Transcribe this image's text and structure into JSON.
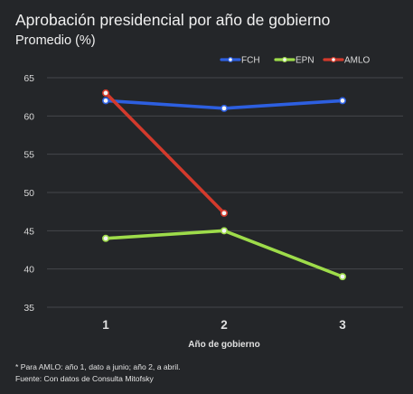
{
  "title": "Aprobación presidencial por año de gobierno",
  "subtitle": "Promedio (%)",
  "footnote": "* Para AMLO: año 1, dato a junio; año 2, a abril.",
  "source": "Fuente: Con datos de Consulta Mitofsky",
  "chart_data": {
    "type": "line",
    "title": "Aprobación presidencial por año de gobierno",
    "subtitle": "Promedio (%)",
    "xlabel": "Año de gobierno",
    "ylabel": "",
    "x": [
      1,
      2,
      3
    ],
    "x_tick_labels": [
      "1",
      "2",
      "3"
    ],
    "ylim": [
      35,
      65
    ],
    "y_ticks": [
      35,
      40,
      45,
      50,
      55,
      60,
      65
    ],
    "grid": true,
    "legend_position": "top-right",
    "series": [
      {
        "name": "FCH",
        "color": "#2d5fe0",
        "values": [
          62.0,
          61.0,
          62.0
        ]
      },
      {
        "name": "EPN",
        "color": "#9edc4a",
        "values": [
          44.0,
          45.0,
          39.0
        ]
      },
      {
        "name": "AMLO",
        "color": "#d33a2c",
        "values": [
          63.0,
          47.3,
          null
        ]
      }
    ]
  }
}
